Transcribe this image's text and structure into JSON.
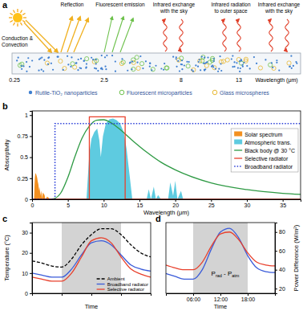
{
  "diagram": {
    "label": "a",
    "top_labels": [
      [
        "Reflection"
      ],
      [
        "Fluorescent emission"
      ],
      [
        "Infrared exchange",
        "with the sky"
      ],
      [
        "Infrared radiation",
        "to outer space"
      ],
      [
        "Infrared exchange",
        "with the sky"
      ]
    ],
    "side_label": [
      "Conduction &",
      "Convection"
    ],
    "wavelength_labels": [
      "0.25",
      "2.5",
      "8",
      "13"
    ],
    "wavelength_title": "Wavelength (μm)",
    "legend": [
      {
        "name": "Rutile-TiO₂ nanoparticles",
        "color": "#3f7fd0"
      },
      {
        "name": "Fluorescent microparticles",
        "color": "#6cc04a"
      },
      {
        "name": "Glass microspheres",
        "color": "#e8b830"
      }
    ]
  },
  "chart_data": [
    {
      "type": "line",
      "label": "b",
      "x_label": "Wavelength (μm)",
      "y_label": "Absorptivity",
      "xlim": [
        0,
        37.5
      ],
      "ylim": [
        0,
        1.05
      ],
      "xticks": [
        0,
        5,
        10,
        15,
        20,
        25,
        30,
        35
      ],
      "yticks": [
        0,
        0.25,
        0.5,
        0.75,
        1
      ],
      "legend": "upper right",
      "series": [
        {
          "name": "Solar spectrum",
          "type": "area",
          "color": "#f39020",
          "x": [
            0.28,
            0.3,
            0.35,
            0.4,
            0.45,
            0.5,
            0.55,
            0.6,
            0.7,
            0.8,
            0.9,
            0.95,
            1.0,
            1.1,
            1.15,
            1.25,
            1.35,
            1.4,
            1.5,
            1.6,
            1.75,
            1.85,
            1.95,
            2.1,
            2.3,
            2.5
          ],
          "values": [
            0,
            0.05,
            0.18,
            0.26,
            0.3,
            0.31,
            0.3,
            0.29,
            0.26,
            0.21,
            0.17,
            0.1,
            0.15,
            0.1,
            0.04,
            0.1,
            0.06,
            0.01,
            0.08,
            0.07,
            0.05,
            0,
            0.01,
            0.03,
            0.02,
            0
          ]
        },
        {
          "name": "Atmospheric trans.",
          "type": "area",
          "color": "#5ecbe0",
          "x": [
            7.6,
            8.0,
            8.3,
            8.7,
            9.1,
            9.4,
            9.6,
            9.9,
            10.3,
            10.8,
            11.3,
            11.8,
            12.3,
            12.8,
            13.2,
            13.6,
            14.0,
            15.0,
            16.0,
            16.3,
            16.6,
            17.0,
            17.3,
            17.6,
            18.0,
            18.6,
            19.0,
            19.3,
            19.7,
            20.0,
            20.3,
            20.8,
            21.1,
            21.4
          ],
          "values": [
            0,
            0.55,
            0.72,
            0.8,
            0.84,
            0.7,
            0.5,
            0.75,
            0.9,
            0.95,
            0.96,
            0.94,
            0.9,
            0.8,
            0.6,
            0.3,
            0,
            null,
            0,
            0.12,
            0,
            0.15,
            0,
            0.05,
            0,
            null,
            0,
            0.2,
            0.04,
            0.22,
            0,
            0.1,
            0,
            0
          ]
        },
        {
          "name": "Black body @ 30 °C",
          "color": "#2e9a44",
          "line_style": "solid",
          "x": [
            2.5,
            3,
            4,
            5,
            6,
            7,
            8,
            9,
            10,
            11,
            12,
            14,
            16,
            18,
            20,
            25,
            30,
            35,
            37.5
          ],
          "values": [
            0,
            0.006,
            0.074,
            0.26,
            0.51,
            0.73,
            0.87,
            0.94,
            0.945,
            0.91,
            0.85,
            0.7,
            0.56,
            0.44,
            0.35,
            0.195,
            0.115,
            0.071,
            0.058
          ]
        },
        {
          "name": "Selective radiator",
          "color": "#e8402c",
          "line_style": "solid",
          "x": [
            0,
            8,
            8,
            13,
            13,
            37.5
          ],
          "values": [
            0,
            0,
            0.98,
            0.98,
            0,
            0
          ]
        },
        {
          "name": "Broadband radiator",
          "color": "#2b3fd8",
          "line_style": "dotted",
          "x": [
            0,
            3.2,
            3.2,
            37.5
          ],
          "values": [
            0,
            0,
            0.9,
            0.9
          ]
        }
      ]
    },
    {
      "type": "line",
      "label": "c",
      "x_label": "Time",
      "y_label": "Temperature (°C)",
      "x": [
        0,
        2,
        4,
        6,
        8,
        10,
        12,
        14,
        16,
        18,
        20,
        22,
        24
      ],
      "xlim": [
        0,
        24
      ],
      "xticks": [
        6,
        12,
        18
      ],
      "ylim": [
        0,
        35
      ],
      "yticks": [
        0,
        10,
        20,
        30
      ],
      "tick_labels": "y",
      "legend": "lower right",
      "shaded_x": [
        6,
        18
      ],
      "series": [
        {
          "name": "Ambient",
          "color": "#000000",
          "line_style": "dashed",
          "values": [
            16,
            15,
            13.5,
            13,
            17,
            24,
            29,
            32,
            32,
            29,
            24,
            20,
            18
          ]
        },
        {
          "name": "Broadband radiator",
          "color": "#3a5bd9",
          "line_style": "solid",
          "values": [
            10,
            9,
            8,
            8,
            12,
            19,
            25,
            26,
            24,
            19,
            14,
            12,
            11
          ]
        },
        {
          "name": "Selective radiator",
          "color": "#e8402c",
          "line_style": "solid",
          "values": [
            8,
            7,
            6,
            6,
            10,
            18,
            26,
            27.5,
            25,
            18,
            12,
            9.5,
            8
          ]
        }
      ]
    },
    {
      "type": "line",
      "label": "d",
      "x_label": "Time",
      "y2_label": "Power Difference (W/m²)",
      "x": [
        0,
        2,
        4,
        6,
        8,
        10,
        12,
        14,
        16,
        18,
        20,
        22,
        24
      ],
      "xlim": [
        0,
        24
      ],
      "xticks": [
        {
          "value": 6,
          "label": "06:00"
        },
        {
          "value": 12,
          "label": "12:00"
        },
        {
          "value": 18,
          "label": "18:00"
        }
      ],
      "y2lim": [
        15,
        90
      ],
      "y2ticks": [
        20,
        40,
        60,
        80
      ],
      "shaded_x": [
        6,
        18
      ],
      "annotation": [
        "P",
        "rad",
        " - P",
        "atm"
      ],
      "series": [
        {
          "color": "#3a5bd9",
          "axis": "y2",
          "line_style": "solid",
          "values": [
            36,
            33,
            30,
            30,
            40,
            62,
            80,
            84,
            74,
            55,
            42,
            38,
            37
          ]
        },
        {
          "color": "#e8402c",
          "axis": "y2",
          "line_style": "solid",
          "values": [
            45,
            42,
            40,
            40,
            48,
            65,
            78,
            80,
            72,
            58,
            48,
            45,
            44
          ]
        }
      ]
    }
  ]
}
